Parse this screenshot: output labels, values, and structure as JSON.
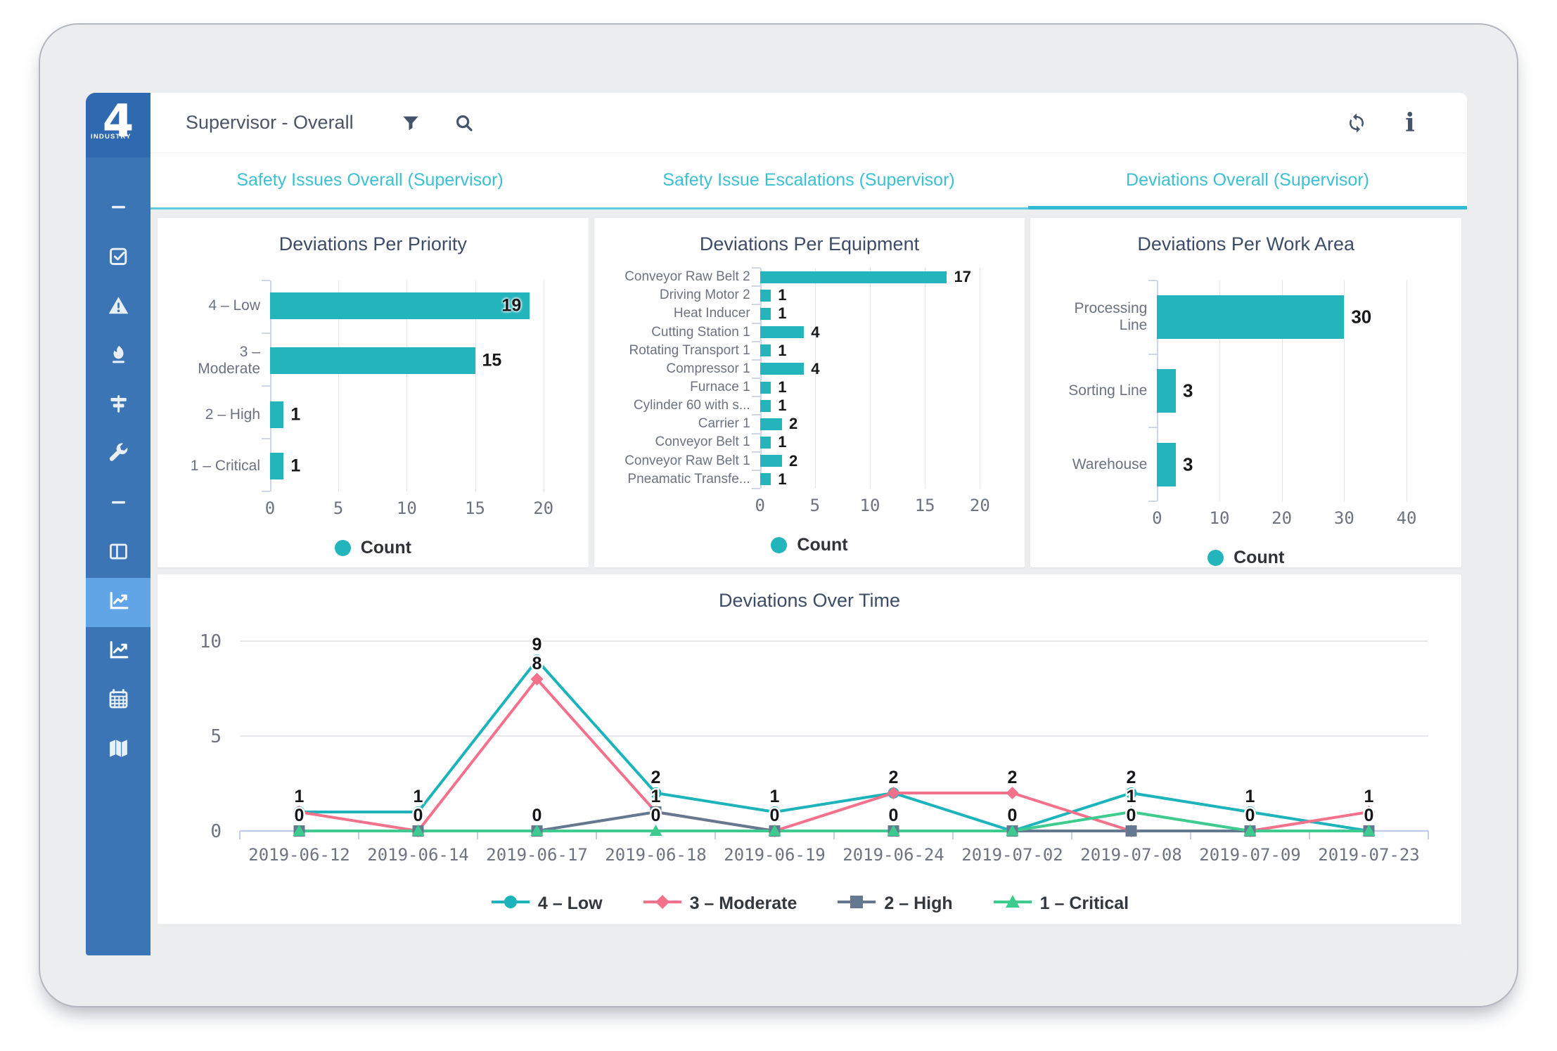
{
  "colors": {
    "accent": "#23b4bc",
    "tab_text": "#3cc0d4",
    "sidebar": "#3b75b6",
    "sidebar_active": "#61a5e7",
    "logo_bg": "#2f6ab1",
    "title_text": "#3d4d68",
    "series_low": "#1cb3bb",
    "series_moderate": "#f3718b",
    "series_high": "#64798f",
    "series_critical": "#3ecb90"
  },
  "logo": {
    "number": "4",
    "word": "INDUSTRY"
  },
  "header": {
    "title": "Supervisor - Overall",
    "left_icons": [
      "filter-icon",
      "search-icon"
    ],
    "right_icons": [
      "refresh-icon",
      "info-icon"
    ]
  },
  "tabs": [
    {
      "label": "Safety Issues Overall (Supervisor)",
      "active": false
    },
    {
      "label": "Safety Issue Escalations (Supervisor)",
      "active": false
    },
    {
      "label": "Deviations Overall (Supervisor)",
      "active": true
    }
  ],
  "sidebar": {
    "items": [
      {
        "icon": "dash-icon"
      },
      {
        "icon": "tasks-icon"
      },
      {
        "icon": "warning-icon"
      },
      {
        "icon": "flame-icon"
      },
      {
        "icon": "signpost-icon"
      },
      {
        "icon": "wrench-icon"
      },
      {
        "icon": "dash-icon"
      },
      {
        "icon": "columns-icon"
      },
      {
        "icon": "chart-line-icon",
        "active": true
      },
      {
        "icon": "chart-line-icon"
      },
      {
        "icon": "calendar-icon"
      },
      {
        "icon": "map-icon"
      }
    ]
  },
  "chart_data": [
    {
      "type": "bar",
      "orientation": "horizontal",
      "title": "Deviations Per Priority",
      "categories": [
        "4 – Low",
        "3 – Moderate",
        "2 – High",
        "1 – Critical"
      ],
      "values": [
        19,
        15,
        1,
        1
      ],
      "xlim": [
        0,
        20
      ],
      "xticks": [
        0,
        5,
        10,
        15,
        20
      ],
      "legend": "Count",
      "grid": "vertical"
    },
    {
      "type": "bar",
      "orientation": "horizontal",
      "title": "Deviations Per Equipment",
      "categories": [
        "Conveyor Raw Belt 2",
        "Driving Motor 2",
        "Heat Inducer",
        "Cutting Station 1",
        "Rotating Transport 1",
        "Compressor 1",
        "Furnace 1",
        "Cylinder 60 with s...",
        "Carrier 1",
        "Conveyor Belt 1",
        "Conveyor Raw Belt 1",
        "Pneamatic Transfe..."
      ],
      "values": [
        17,
        1,
        1,
        4,
        1,
        4,
        1,
        1,
        2,
        1,
        2,
        1
      ],
      "xlim": [
        0,
        20
      ],
      "xticks": [
        0,
        5,
        10,
        15,
        20
      ],
      "legend": "Count",
      "grid": "vertical"
    },
    {
      "type": "bar",
      "orientation": "horizontal",
      "title": "Deviations Per Work Area",
      "categories": [
        "Processing Line",
        "Sorting Line",
        "Warehouse"
      ],
      "values": [
        30,
        3,
        3
      ],
      "xlim": [
        0,
        40
      ],
      "xticks": [
        0,
        10,
        20,
        30,
        40
      ],
      "legend": "Count",
      "grid": "vertical"
    },
    {
      "type": "line",
      "title": "Deviations Over Time",
      "x": [
        "2019-06-12",
        "2019-06-14",
        "2019-06-17",
        "2019-06-18",
        "2019-06-19",
        "2019-06-24",
        "2019-07-02",
        "2019-07-08",
        "2019-07-09",
        "2019-07-23"
      ],
      "ylim": [
        0,
        10
      ],
      "yticks": [
        0,
        5,
        10
      ],
      "legend_position": "bottom",
      "grid": "horizontal",
      "series": [
        {
          "name": "4 – Low",
          "marker": "circle",
          "color": "#1cb3bb",
          "values": [
            1,
            1,
            9,
            2,
            1,
            2,
            0,
            2,
            1,
            0
          ]
        },
        {
          "name": "3 – Moderate",
          "marker": "diamond",
          "color": "#f3718b",
          "values": [
            1,
            0,
            8,
            1,
            0,
            2,
            2,
            0,
            0,
            1
          ]
        },
        {
          "name": "2 – High",
          "marker": "square",
          "color": "#64798f",
          "values": [
            0,
            0,
            0,
            1,
            0,
            0,
            0,
            0,
            0,
            0
          ]
        },
        {
          "name": "1 – Critical",
          "marker": "triangle",
          "color": "#3ecb90",
          "values": [
            0,
            0,
            0,
            0,
            0,
            0,
            0,
            1,
            0,
            0
          ]
        }
      ]
    }
  ]
}
